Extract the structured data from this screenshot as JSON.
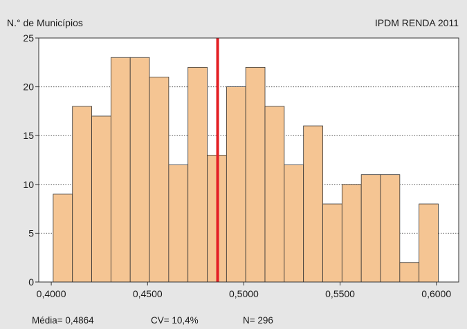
{
  "chart_data": {
    "type": "bar",
    "title": "IPDM RENDA 2011",
    "ylabel": "N.° de Municípios",
    "xlabel": "",
    "x_ticks": [
      "0,4000",
      "0,4500",
      "0,5000",
      "0,5500",
      "0,6000"
    ],
    "x_tick_values": [
      0.4,
      0.45,
      0.5,
      0.55,
      0.6
    ],
    "y_ticks": [
      "0",
      "5",
      "10",
      "15",
      "20",
      "25"
    ],
    "y_tick_values": [
      0,
      5,
      10,
      15,
      20,
      25
    ],
    "xlim": [
      0.3935,
      0.6116
    ],
    "ylim": [
      0,
      25
    ],
    "grid": "horizontal-dotted",
    "bins_start": [
      0.401,
      0.411,
      0.421,
      0.431,
      0.441,
      0.451,
      0.461,
      0.471,
      0.481,
      0.491,
      0.501,
      0.511,
      0.521,
      0.531,
      0.541,
      0.551,
      0.561,
      0.571,
      0.581,
      0.591
    ],
    "bin_width": 0.01,
    "values": [
      9,
      18,
      17,
      23,
      23,
      21,
      12,
      22,
      13,
      20,
      22,
      18,
      12,
      16,
      8,
      10,
      11,
      11,
      2,
      8
    ],
    "bar_color": "#f5c593",
    "bar_edge_color": "#333333",
    "mean_line": {
      "value": 0.4864,
      "color": "#e31e24"
    },
    "stats": {
      "media": "Média= 0,4864",
      "cv": "CV= 10,4%",
      "n": "N= 296"
    }
  }
}
